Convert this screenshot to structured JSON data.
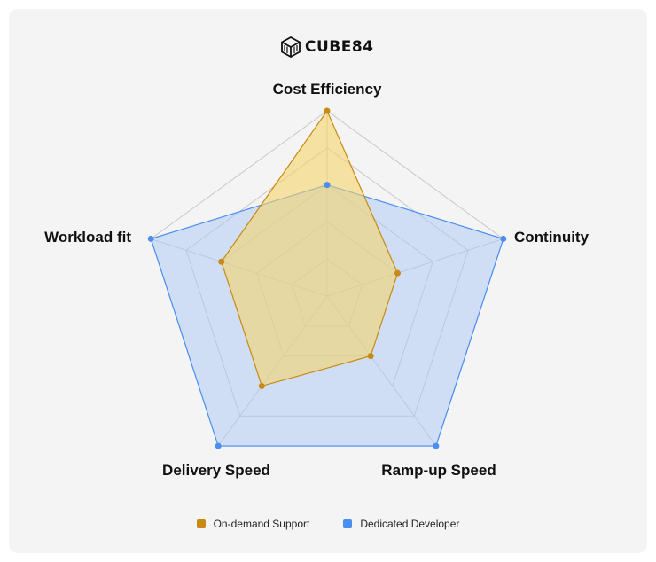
{
  "brand": {
    "name": "CUBE84",
    "logo_icon": "cube-logo-icon"
  },
  "chart_data": {
    "type": "radar",
    "axes": [
      "Cost Efficiency",
      "Continuity",
      "Ramp-up Speed",
      "Delivery Speed",
      "Workload fit"
    ],
    "range": [
      0,
      5
    ],
    "grid_levels": 5,
    "legend_position": "bottom",
    "series": [
      {
        "name": "On-demand Support",
        "values": [
          5,
          2,
          2,
          3,
          3
        ],
        "color": "#c88a12",
        "fill": "#f5d36a"
      },
      {
        "name": "Dedicated Developer",
        "values": [
          3,
          5,
          5,
          5,
          5
        ],
        "color": "#4a8ef0",
        "fill": "#a9c8f5"
      }
    ]
  },
  "colors": {
    "card_bg": "#f4f4f4",
    "grid": "#c8c8c8"
  }
}
